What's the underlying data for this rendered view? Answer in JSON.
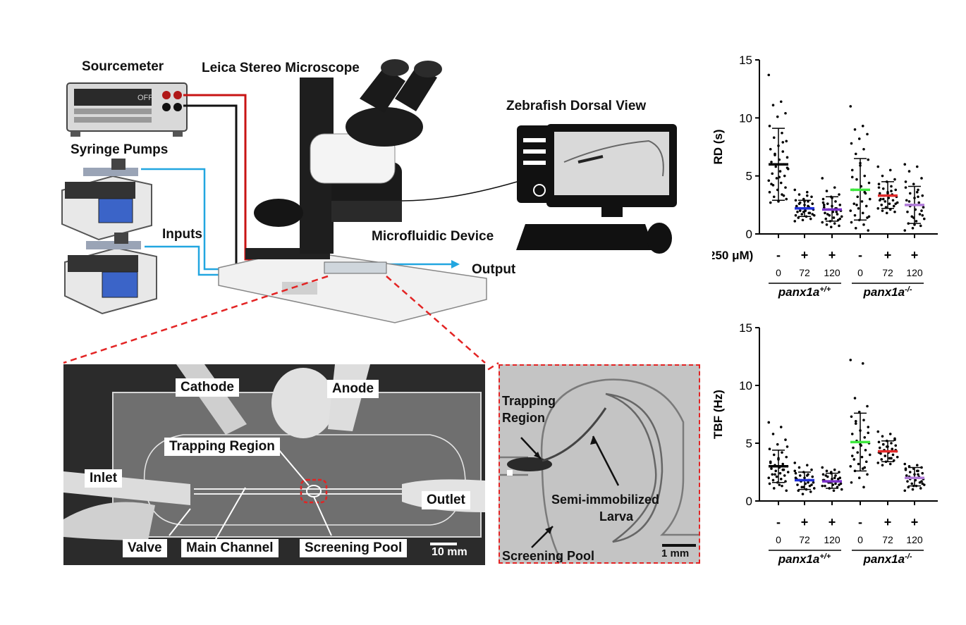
{
  "setup": {
    "sourcemeter": "Sourcemeter",
    "microscope": "Leica Stereo Microscope",
    "pumps": "Syringe Pumps",
    "inputs": "Inputs",
    "dorsal_view": "Zebrafish Dorsal View",
    "device": "Microfluidic Device",
    "output": "Output",
    "meter_display": "OFF"
  },
  "device_photo": {
    "cathode": "Cathode",
    "anode": "Anode",
    "trapping": "Trapping Region",
    "inlet": "Inlet",
    "outlet": "Outlet",
    "valve": "Valve",
    "main_channel": "Main Channel",
    "screening_pool": "Screening Pool",
    "scale": "10 mm"
  },
  "zoom_photo": {
    "trapping_line1": "Trapping",
    "trapping_line2": "Region",
    "larva_line1": "Semi-immobilized",
    "larva_line2": "Larva",
    "screening_pool": "Screening Pool",
    "scale": "1 mm"
  },
  "chart_data": [
    {
      "type": "scatter",
      "ylabel": "RD (s)",
      "ylim": [
        0,
        15
      ],
      "yticks": [
        0,
        5,
        10,
        15
      ],
      "treatment_label": "250 μM)",
      "treatment": [
        "-",
        "+",
        "+",
        "-",
        "+",
        "+"
      ],
      "time": [
        "0",
        "72",
        "120",
        "0",
        "72",
        "120"
      ],
      "groups": [
        "panx1a",
        "panx1a"
      ],
      "group_sup": [
        "+/+",
        "-/-"
      ],
      "series": [
        {
          "mean": 6.0,
          "sd_low": 2.9,
          "sd_high": 9.1,
          "color": "#000000",
          "points": [
            13.7,
            11.4,
            11.1,
            10.4,
            10.1,
            9.3,
            8.7,
            8.3,
            8.0,
            7.6,
            7.3,
            7.1,
            6.8,
            6.6,
            6.4,
            6.2,
            6.0,
            5.8,
            5.6,
            5.4,
            5.2,
            5.0,
            4.8,
            4.6,
            4.4,
            4.2,
            4.0,
            3.8,
            3.6,
            3.4,
            3.2,
            3.0,
            2.8,
            2.7,
            7.9,
            6.9,
            5.7,
            4.9,
            4.3,
            3.3
          ]
        },
        {
          "mean": 2.2,
          "sd_low": 1.5,
          "sd_high": 2.9,
          "color": "#1f2fd6",
          "points": [
            3.8,
            3.6,
            3.4,
            3.2,
            3.0,
            2.9,
            2.8,
            2.7,
            2.6,
            2.5,
            2.4,
            2.3,
            2.2,
            2.1,
            2.0,
            1.9,
            1.8,
            1.7,
            1.6,
            1.5,
            1.4,
            1.3,
            1.2,
            1.1,
            3.3,
            2.6,
            2.2,
            1.9,
            1.6,
            2.4,
            2.0,
            1.7,
            2.8,
            2.3,
            1.8
          ]
        },
        {
          "mean": 2.1,
          "sd_low": 1.1,
          "sd_high": 3.2,
          "color": "#7a2fc8",
          "points": [
            4.8,
            4.0,
            3.7,
            3.4,
            3.2,
            3.0,
            2.8,
            2.6,
            2.5,
            2.4,
            2.3,
            2.2,
            2.1,
            2.0,
            1.9,
            1.8,
            1.7,
            1.6,
            1.5,
            1.4,
            1.3,
            1.2,
            1.1,
            1.0,
            0.9,
            0.8,
            0.7,
            0.6,
            2.7,
            2.2,
            1.7,
            1.3,
            3.1,
            2.5,
            1.9
          ]
        },
        {
          "mean": 3.8,
          "sd_low": 1.2,
          "sd_high": 6.5,
          "color": "#3ee83e",
          "points": [
            11.0,
            9.3,
            9.0,
            8.6,
            8.2,
            7.8,
            7.3,
            6.9,
            6.4,
            5.9,
            5.5,
            5.0,
            4.7,
            4.4,
            4.1,
            3.8,
            3.5,
            3.2,
            3.0,
            2.8,
            2.6,
            2.4,
            2.2,
            2.0,
            1.8,
            1.6,
            1.4,
            1.2,
            1.0,
            0.8,
            0.5,
            0.3,
            6.1,
            4.9,
            3.6,
            2.5,
            1.5
          ]
        },
        {
          "mean": 3.3,
          "sd_low": 2.2,
          "sd_high": 4.5,
          "color": "#e12a2a",
          "points": [
            5.8,
            5.5,
            5.0,
            4.7,
            4.5,
            4.3,
            4.1,
            3.9,
            3.8,
            3.6,
            3.5,
            3.4,
            3.3,
            3.2,
            3.1,
            3.0,
            2.9,
            2.8,
            2.7,
            2.6,
            2.5,
            2.4,
            2.3,
            2.2,
            2.1,
            2.0,
            1.9,
            1.8,
            4.0,
            3.7,
            3.0,
            2.6,
            3.5,
            2.9
          ]
        },
        {
          "mean": 2.5,
          "sd_low": 0.9,
          "sd_high": 4.1,
          "color": "#b07ad8",
          "points": [
            6.0,
            5.8,
            5.4,
            4.8,
            4.3,
            4.0,
            3.8,
            3.5,
            3.3,
            3.1,
            2.9,
            2.7,
            2.5,
            2.3,
            2.1,
            1.9,
            1.7,
            1.5,
            1.3,
            1.1,
            0.9,
            0.7,
            0.5,
            0.3,
            3.6,
            2.8,
            2.0,
            1.4,
            4.5,
            3.2,
            2.4,
            1.6,
            0.8
          ]
        }
      ]
    },
    {
      "type": "scatter",
      "ylabel": "TBF (Hz)",
      "ylim": [
        0,
        15
      ],
      "yticks": [
        0,
        5,
        10,
        15
      ],
      "treatment": [
        "-",
        "+",
        "+",
        "-",
        "+",
        "+"
      ],
      "time": [
        "0",
        "72",
        "120",
        "0",
        "72",
        "120"
      ],
      "groups": [
        "panx1a",
        "panx1a"
      ],
      "group_sup": [
        "+/+",
        "-/-"
      ],
      "series": [
        {
          "mean": 3.0,
          "sd_low": 1.6,
          "sd_high": 4.4,
          "color": "#000000",
          "points": [
            6.8,
            6.4,
            5.8,
            5.3,
            4.9,
            4.5,
            4.2,
            4.0,
            3.8,
            3.6,
            3.4,
            3.2,
            3.1,
            3.0,
            2.9,
            2.8,
            2.7,
            2.6,
            2.5,
            2.4,
            2.3,
            2.2,
            2.1,
            2.0,
            1.9,
            1.8,
            1.7,
            1.6,
            1.5,
            1.3,
            1.1,
            0.9,
            3.7,
            3.3,
            2.7,
            2.3,
            4.7,
            1.4
          ]
        },
        {
          "mean": 1.8,
          "sd_low": 1.0,
          "sd_high": 2.5,
          "color": "#1f2fd6",
          "points": [
            3.3,
            3.1,
            2.9,
            2.7,
            2.5,
            2.4,
            2.3,
            2.2,
            2.1,
            2.0,
            1.9,
            1.8,
            1.7,
            1.6,
            1.5,
            1.4,
            1.3,
            1.2,
            1.1,
            1.0,
            0.9,
            0.8,
            0.6,
            2.6,
            2.2,
            1.8,
            1.4,
            1.2,
            2.0,
            1.6
          ]
        },
        {
          "mean": 1.7,
          "sd_low": 1.1,
          "sd_high": 2.4,
          "color": "#7a2fc8",
          "points": [
            2.9,
            2.7,
            2.6,
            2.5,
            2.4,
            2.3,
            2.2,
            2.1,
            2.0,
            1.9,
            1.8,
            1.7,
            1.6,
            1.5,
            1.4,
            1.3,
            1.2,
            1.1,
            1.0,
            0.9,
            2.2,
            1.9,
            1.6,
            1.3,
            2.0,
            1.7,
            1.4,
            2.5,
            1.8,
            1.5
          ]
        },
        {
          "mean": 5.1,
          "sd_low": 2.6,
          "sd_high": 7.6,
          "color": "#3ee83e",
          "points": [
            12.2,
            11.9,
            8.9,
            8.2,
            7.7,
            7.3,
            7.0,
            6.7,
            6.4,
            6.1,
            5.8,
            5.5,
            5.2,
            5.0,
            4.8,
            4.6,
            4.4,
            4.2,
            4.0,
            3.8,
            3.6,
            3.4,
            3.2,
            3.0,
            2.8,
            2.6,
            2.3,
            2.0,
            1.6,
            1.2,
            6.9,
            5.9,
            4.9,
            3.9,
            2.9
          ]
        },
        {
          "mean": 4.3,
          "sd_low": 3.4,
          "sd_high": 5.2,
          "color": "#e12a2a",
          "points": [
            6.0,
            5.8,
            5.6,
            5.4,
            5.2,
            5.1,
            5.0,
            4.9,
            4.8,
            4.7,
            4.6,
            4.5,
            4.4,
            4.3,
            4.2,
            4.1,
            4.0,
            3.9,
            3.8,
            3.7,
            3.6,
            3.5,
            3.4,
            3.3,
            3.2,
            3.1,
            5.3,
            4.7,
            4.2,
            3.7,
            4.9,
            4.4
          ]
        },
        {
          "mean": 2.0,
          "sd_low": 1.3,
          "sd_high": 2.9,
          "color": "#b07ad8",
          "points": [
            3.2,
            3.1,
            3.0,
            2.9,
            2.8,
            2.7,
            2.6,
            2.5,
            2.4,
            2.3,
            2.2,
            2.1,
            2.0,
            1.9,
            1.8,
            1.7,
            1.6,
            1.5,
            1.4,
            1.3,
            1.2,
            1.1,
            1.0,
            0.9,
            2.6,
            2.1,
            1.7,
            1.3,
            2.8,
            2.3,
            1.9,
            1.5
          ]
        }
      ]
    }
  ]
}
